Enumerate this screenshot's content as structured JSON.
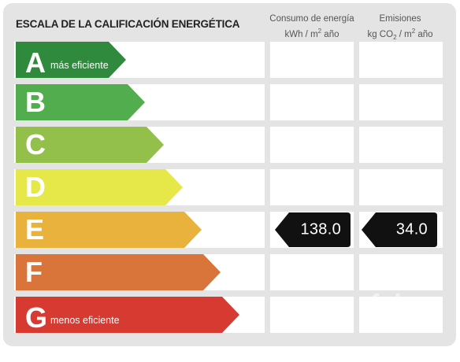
{
  "header": {
    "title": "ESCALA DE LA CALIFICACIÓN ENERGÉTICA",
    "consumo_line1": "Consumo de energía",
    "consumo_line2a": "kWh / m",
    "consumo_line2_sup": "2",
    "consumo_line2b": " año",
    "emisiones_line1": "Emisiones",
    "emisiones_line2a": "kg CO",
    "emisiones_line2_sub": "2",
    "emisiones_line2b": " / m",
    "emisiones_line2_sup": "2",
    "emisiones_line2c": " año"
  },
  "ratings": [
    {
      "letter": "A",
      "label": "más eficiente",
      "color": "#2f8a3e"
    },
    {
      "letter": "B",
      "label": "",
      "color": "#52ad4e"
    },
    {
      "letter": "C",
      "label": "",
      "color": "#92c04a"
    },
    {
      "letter": "D",
      "label": "",
      "color": "#e6e84a"
    },
    {
      "letter": "E",
      "label": "",
      "color": "#e8b23c"
    },
    {
      "letter": "F",
      "label": "",
      "color": "#d9743a"
    },
    {
      "letter": "G",
      "label": "menos eficiente",
      "color": "#d63a30"
    }
  ],
  "current": {
    "rating": "E",
    "consumo": "138.0",
    "emisiones": "34.0",
    "badge_color": "#111111"
  },
  "watermark": "fab"
}
